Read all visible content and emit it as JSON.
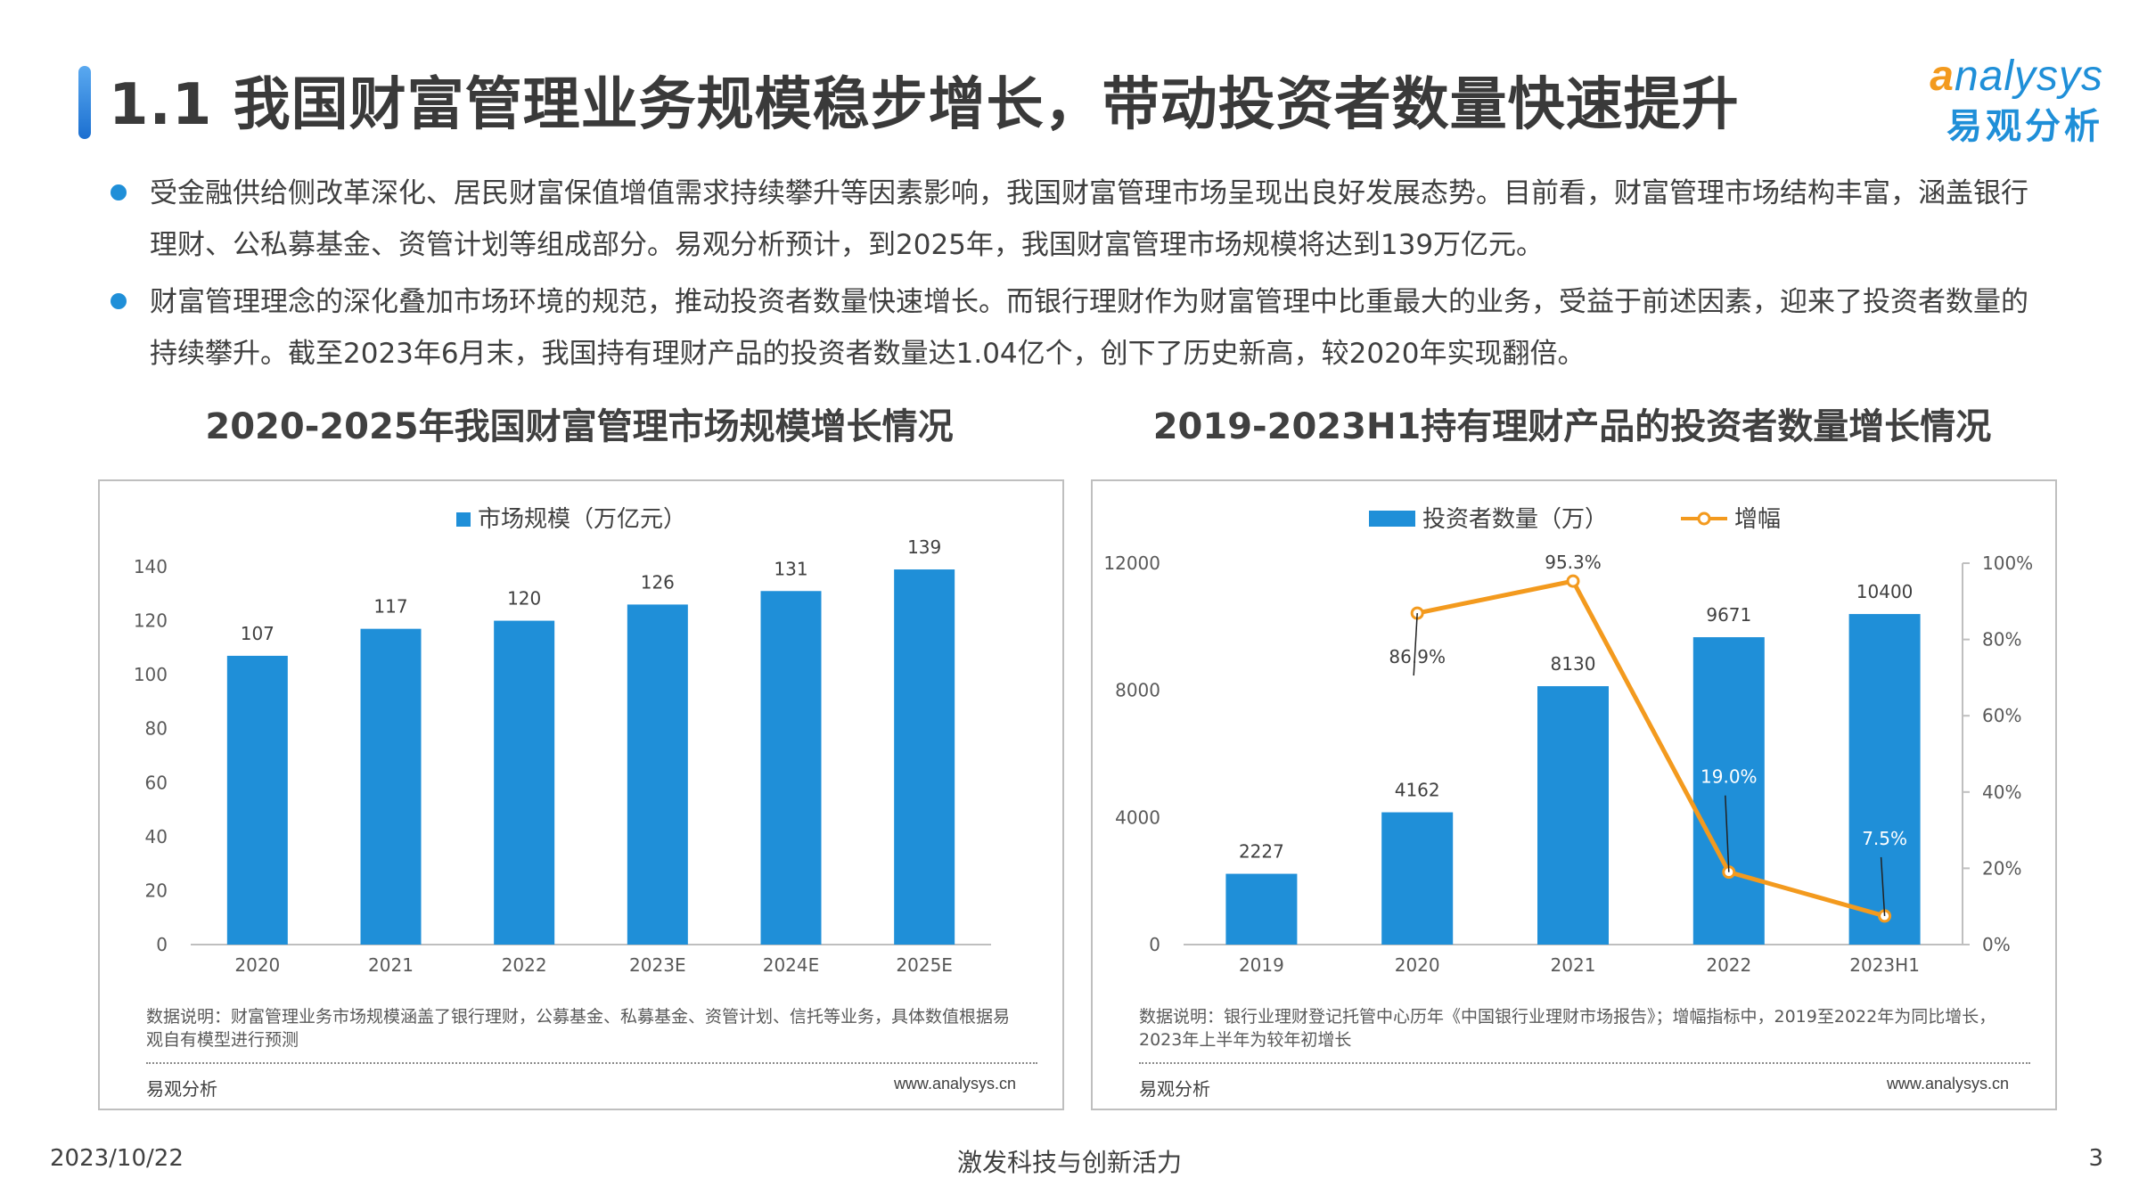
{
  "page": {
    "title": "1.1 我国财富管理业务规模稳步增长，带动投资者数量快速提升",
    "logo_en": "nalysys",
    "logo_en_a": "a",
    "logo_cn": "易观分析",
    "bullets": [
      "受金融供给侧改革深化、居民财富保值增值需求持续攀升等因素影响，我国财富管理市场呈现出良好发展态势。目前看，财富管理市场结构丰富，涵盖银行理财、公私募基金、资管计划等组成部分。易观分析预计，到2025年，我国财富管理市场规模将达到139万亿元。",
      "财富管理理念的深化叠加市场环境的规范，推动投资者数量快速增长。而银行理财作为财富管理中比重最大的业务，受益于前述因素，迎来了投资者数量的持续攀升。截至2023年6月末，我国持有理财产品的投资者数量达1.04亿个，创下了历史新高，较2020年实现翻倍。"
    ],
    "footer": {
      "date": "2023/10/22",
      "slogan": "激发科技与创新活力",
      "page_number": "3"
    }
  },
  "chart_data": [
    {
      "type": "bar",
      "title": "2020-2025年我国财富管理市场规模增长情况",
      "categories": [
        "2020",
        "2021",
        "2022",
        "2023E",
        "2024E",
        "2025E"
      ],
      "series": [
        {
          "name": "市场规模（万亿元）",
          "values": [
            107,
            117,
            120,
            126,
            131,
            139
          ],
          "color": "#1f8fd8"
        }
      ],
      "ylim": [
        0,
        140
      ],
      "yticks": [
        0,
        20,
        40,
        60,
        80,
        100,
        120,
        140
      ],
      "legend": "top-center",
      "grid": false,
      "note": "数据说明：财富管理业务市场规模涵盖了银行理财，公募基金、私募基金、资管计划、信托等业务，具体数值根据易观自有模型进行预测",
      "source": "易观分析",
      "url": "www.analysys.cn"
    },
    {
      "type": "bar+line",
      "title": "2019-2023H1持有理财产品的投资者数量增长情况",
      "categories": [
        "2019",
        "2020",
        "2021",
        "2022",
        "2023H1"
      ],
      "series": [
        {
          "name": "投资者数量（万）",
          "type": "bar",
          "axis": "left",
          "values": [
            2227,
            4162,
            8130,
            9671,
            10400
          ],
          "color": "#1f8fd8"
        },
        {
          "name": "增幅",
          "type": "line",
          "axis": "right",
          "values": [
            null,
            86.9,
            95.3,
            19.0,
            7.5
          ],
          "labels": [
            "",
            "86.9%",
            "95.3%",
            "19.0%",
            "7.5%"
          ],
          "color": "#f39a1e"
        }
      ],
      "ylim_left": [
        0,
        12000
      ],
      "yticks_left": [
        0,
        4000,
        8000,
        12000
      ],
      "ylim_right": [
        0,
        100
      ],
      "yticks_right": [
        "0%",
        "20%",
        "40%",
        "60%",
        "80%",
        "100%"
      ],
      "legend": "top-center",
      "grid": false,
      "note": "数据说明：银行业理财登记托管中心历年《中国银行业理财市场报告》；增幅指标中，2019至2022年为同比增长，2023年上半年为较年初增长",
      "source": "易观分析",
      "url": "www.analysys.cn"
    }
  ]
}
